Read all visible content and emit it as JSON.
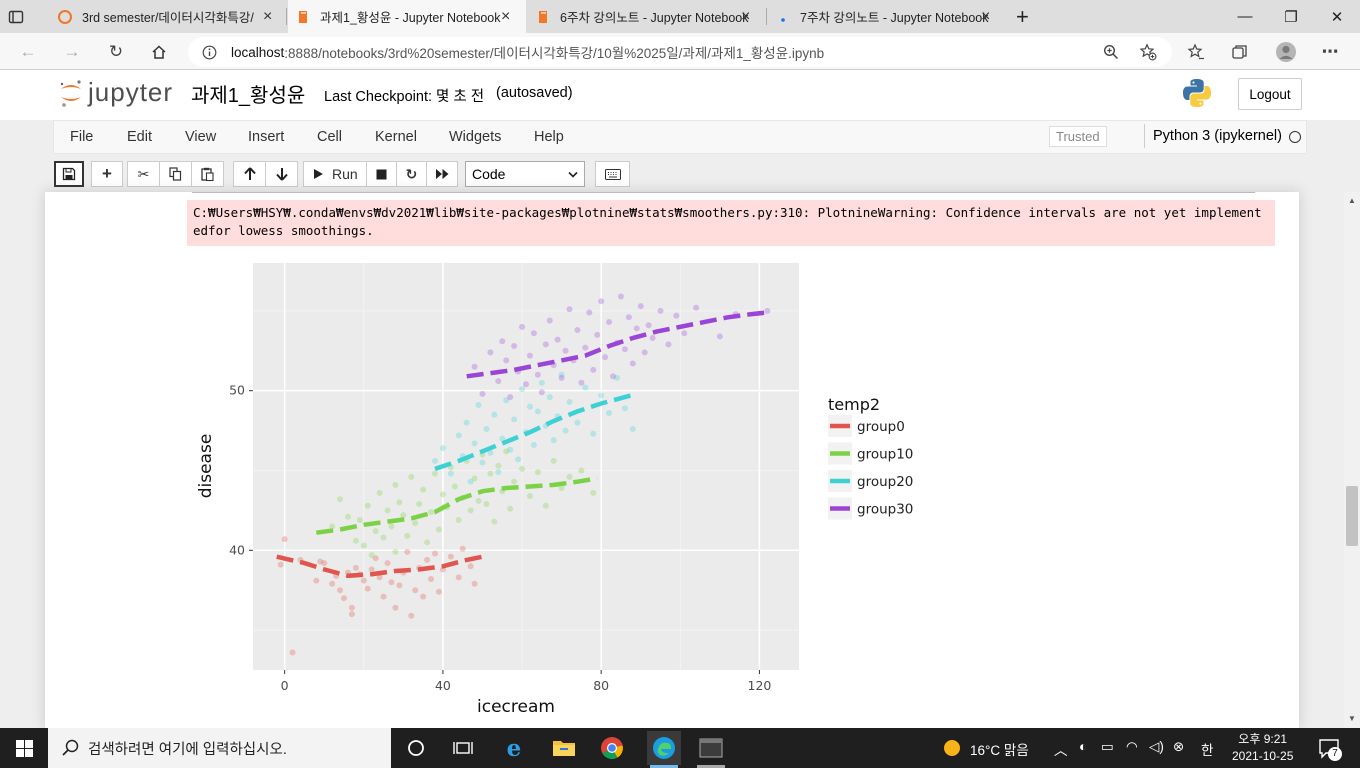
{
  "browser": {
    "tabs": [
      {
        "title": "3rd semester/데이터시각화특강/",
        "icon": "jupyter-orange-icon"
      },
      {
        "title": "과제1_황성윤 - Jupyter Notebook",
        "icon": "notebook-icon"
      },
      {
        "title": "6주차 강의노트 - Jupyter Notebook",
        "icon": "notebook-icon"
      },
      {
        "title": "7주차 강의노트 - Jupyter Notebook",
        "icon": "loading-icon"
      }
    ],
    "new_tab": "+",
    "close_glyph": "×",
    "window_controls": {
      "minimize": "—",
      "restore": "❐",
      "close": "✕"
    },
    "url_host": "localhost",
    "url_rest": ":8888/notebooks/3rd%20semester/데이터시각화특강/10월%2025일/과제/과제1_황성윤.ipynb"
  },
  "jupyter": {
    "logo_text": "jupyter",
    "notebook_title": "과제1_황성윤",
    "checkpoint": "Last Checkpoint: 몇 초 전",
    "autosaved": "(autosaved)",
    "logout": "Logout",
    "menu": [
      "File",
      "Edit",
      "View",
      "Insert",
      "Cell",
      "Kernel",
      "Widgets",
      "Help"
    ],
    "trusted": "Trusted",
    "kernel": "Python 3 (ipykernel)",
    "toolbar": {
      "run_label": "Run",
      "cell_type": "Code"
    }
  },
  "output": {
    "stderr": "C:₩Users₩HSY₩.conda₩envs₩dv2021₩lib₩site-packages₩plotnine₩stats₩smoothers.py:310: PlotnineWarning: Confidence intervals are not yet implementedfor lowess smoothings."
  },
  "chart_data": {
    "type": "scatter",
    "title": "",
    "xlabel": "icecream",
    "ylabel": "disease",
    "xlim": [
      -8,
      130
    ],
    "ylim": [
      32.5,
      58
    ],
    "x_ticks": [
      0,
      40,
      80,
      120
    ],
    "y_ticks": [
      40,
      50
    ],
    "x_tick_labels": [
      "0",
      "40",
      "80",
      "120"
    ],
    "y_tick_labels": [
      "40",
      "50"
    ],
    "grid": true,
    "legend_title": "temp2",
    "legend_position": "right",
    "series": [
      {
        "name": "group0",
        "color": "#E0554D",
        "smooth": [
          [
            -2,
            39.6
          ],
          [
            5,
            39.2
          ],
          [
            10,
            38.8
          ],
          [
            16,
            38.4
          ],
          [
            22,
            38.5
          ],
          [
            28,
            38.7
          ],
          [
            34,
            38.8
          ],
          [
            40,
            39.0
          ],
          [
            46,
            39.4
          ],
          [
            50,
            39.6
          ]
        ],
        "points": [
          [
            -1,
            39.1
          ],
          [
            0,
            40.7
          ],
          [
            2,
            33.6
          ],
          [
            4,
            39.4
          ],
          [
            8,
            38.1
          ],
          [
            9,
            39.3
          ],
          [
            10,
            39.2
          ],
          [
            12,
            37.9
          ],
          [
            13,
            38.4
          ],
          [
            14,
            37.5
          ],
          [
            15,
            37.0
          ],
          [
            16,
            38.6
          ],
          [
            17,
            36.4
          ],
          [
            17,
            36.0
          ],
          [
            18,
            38.9
          ],
          [
            19,
            38.5
          ],
          [
            20,
            38.1
          ],
          [
            21,
            37.6
          ],
          [
            22,
            38.8
          ],
          [
            23,
            39.5
          ],
          [
            24,
            38.3
          ],
          [
            25,
            37.1
          ],
          [
            26,
            39.2
          ],
          [
            27,
            38.0
          ],
          [
            28,
            36.4
          ],
          [
            29,
            37.8
          ],
          [
            30,
            38.6
          ],
          [
            31,
            39.9
          ],
          [
            32,
            35.9
          ],
          [
            33,
            37.5
          ],
          [
            34,
            38.9
          ],
          [
            35,
            37.1
          ],
          [
            36,
            39.4
          ],
          [
            37,
            38.2
          ],
          [
            38,
            39.8
          ],
          [
            39,
            37.4
          ],
          [
            40,
            38.8
          ],
          [
            42,
            39.6
          ],
          [
            44,
            38.3
          ],
          [
            45,
            40.1
          ],
          [
            47,
            39.0
          ],
          [
            48,
            37.9
          ]
        ]
      },
      {
        "name": "group10",
        "color": "#7CD247",
        "smooth": [
          [
            8,
            41.1
          ],
          [
            14,
            41.3
          ],
          [
            20,
            41.6
          ],
          [
            26,
            41.8
          ],
          [
            32,
            42.0
          ],
          [
            38,
            42.4
          ],
          [
            44,
            43.2
          ],
          [
            50,
            43.7
          ],
          [
            56,
            43.9
          ],
          [
            62,
            44.0
          ],
          [
            68,
            44.1
          ],
          [
            74,
            44.3
          ],
          [
            79,
            44.5
          ]
        ],
        "points": [
          [
            12,
            41.5
          ],
          [
            14,
            43.2
          ],
          [
            16,
            42.1
          ],
          [
            18,
            40.6
          ],
          [
            19,
            41.9
          ],
          [
            20,
            40.3
          ],
          [
            21,
            42.8
          ],
          [
            22,
            39.7
          ],
          [
            23,
            41.2
          ],
          [
            24,
            43.6
          ],
          [
            25,
            40.8
          ],
          [
            26,
            42.5
          ],
          [
            27,
            41.5
          ],
          [
            28,
            39.9
          ],
          [
            28,
            44.1
          ],
          [
            29,
            43.0
          ],
          [
            30,
            42.2
          ],
          [
            31,
            40.9
          ],
          [
            32,
            44.6
          ],
          [
            33,
            41.7
          ],
          [
            34,
            42.9
          ],
          [
            35,
            43.8
          ],
          [
            36,
            40.5
          ],
          [
            37,
            42.4
          ],
          [
            38,
            44.8
          ],
          [
            39,
            41.3
          ],
          [
            40,
            43.5
          ],
          [
            41,
            42.7
          ],
          [
            42,
            45.2
          ],
          [
            43,
            44.0
          ],
          [
            44,
            41.9
          ],
          [
            45,
            43.3
          ],
          [
            46,
            45.6
          ],
          [
            47,
            42.5
          ],
          [
            48,
            44.5
          ],
          [
            49,
            43.1
          ],
          [
            50,
            46.0
          ],
          [
            51,
            42.9
          ],
          [
            52,
            44.8
          ],
          [
            53,
            41.8
          ],
          [
            54,
            45.3
          ],
          [
            55,
            43.7
          ],
          [
            56,
            46.2
          ],
          [
            57,
            42.6
          ],
          [
            58,
            44.3
          ],
          [
            60,
            45.1
          ],
          [
            62,
            43.4
          ],
          [
            64,
            44.9
          ],
          [
            66,
            42.8
          ],
          [
            68,
            45.6
          ],
          [
            70,
            43.9
          ],
          [
            72,
            44.6
          ],
          [
            75,
            45.0
          ],
          [
            78,
            43.6
          ]
        ]
      },
      {
        "name": "group20",
        "color": "#3DD0D5",
        "smooth": [
          [
            38,
            45.1
          ],
          [
            44,
            45.6
          ],
          [
            50,
            46.2
          ],
          [
            56,
            46.8
          ],
          [
            62,
            47.4
          ],
          [
            68,
            48.1
          ],
          [
            74,
            48.7
          ],
          [
            80,
            49.2
          ],
          [
            86,
            49.6
          ],
          [
            89,
            49.8
          ]
        ],
        "points": [
          [
            38,
            45.6
          ],
          [
            40,
            46.4
          ],
          [
            42,
            44.8
          ],
          [
            44,
            47.2
          ],
          [
            45,
            45.9
          ],
          [
            46,
            48.0
          ],
          [
            47,
            44.3
          ],
          [
            48,
            46.7
          ],
          [
            49,
            49.1
          ],
          [
            50,
            45.5
          ],
          [
            51,
            47.6
          ],
          [
            52,
            46.1
          ],
          [
            53,
            48.5
          ],
          [
            54,
            44.9
          ],
          [
            55,
            47.0
          ],
          [
            56,
            49.4
          ],
          [
            57,
            46.3
          ],
          [
            58,
            48.2
          ],
          [
            59,
            45.7
          ],
          [
            60,
            50.1
          ],
          [
            61,
            47.4
          ],
          [
            62,
            49.0
          ],
          [
            63,
            46.6
          ],
          [
            64,
            48.7
          ],
          [
            65,
            50.5
          ],
          [
            66,
            47.8
          ],
          [
            67,
            49.6
          ],
          [
            68,
            46.9
          ],
          [
            69,
            48.4
          ],
          [
            70,
            51.0
          ],
          [
            71,
            47.5
          ],
          [
            72,
            49.3
          ],
          [
            74,
            48.0
          ],
          [
            76,
            50.2
          ],
          [
            78,
            47.3
          ],
          [
            80,
            49.7
          ],
          [
            82,
            48.6
          ],
          [
            84,
            50.8
          ],
          [
            86,
            48.9
          ],
          [
            88,
            47.6
          ]
        ]
      },
      {
        "name": "group30",
        "color": "#9B44D8",
        "smooth": [
          [
            46,
            50.9
          ],
          [
            52,
            51.1
          ],
          [
            58,
            51.3
          ],
          [
            64,
            51.6
          ],
          [
            70,
            51.9
          ],
          [
            76,
            52.2
          ],
          [
            82,
            52.8
          ],
          [
            88,
            53.3
          ],
          [
            94,
            53.7
          ],
          [
            100,
            54.0
          ],
          [
            106,
            54.3
          ],
          [
            112,
            54.6
          ],
          [
            118,
            54.8
          ],
          [
            122,
            54.9
          ]
        ],
        "points": [
          [
            48,
            51.5
          ],
          [
            50,
            49.8
          ],
          [
            52,
            52.4
          ],
          [
            54,
            50.6
          ],
          [
            55,
            53.1
          ],
          [
            56,
            51.9
          ],
          [
            57,
            49.6
          ],
          [
            58,
            52.8
          ],
          [
            59,
            51.2
          ],
          [
            60,
            54.0
          ],
          [
            61,
            50.4
          ],
          [
            62,
            52.2
          ],
          [
            63,
            53.6
          ],
          [
            64,
            51.0
          ],
          [
            65,
            49.9
          ],
          [
            66,
            52.9
          ],
          [
            67,
            54.4
          ],
          [
            68,
            51.6
          ],
          [
            69,
            53.2
          ],
          [
            70,
            50.8
          ],
          [
            71,
            52.5
          ],
          [
            72,
            55.1
          ],
          [
            73,
            51.9
          ],
          [
            74,
            53.8
          ],
          [
            75,
            50.5
          ],
          [
            76,
            52.7
          ],
          [
            77,
            54.9
          ],
          [
            78,
            51.3
          ],
          [
            79,
            53.5
          ],
          [
            80,
            55.6
          ],
          [
            81,
            52.1
          ],
          [
            82,
            54.3
          ],
          [
            83,
            50.9
          ],
          [
            84,
            53.0
          ],
          [
            85,
            55.9
          ],
          [
            86,
            52.6
          ],
          [
            87,
            54.6
          ],
          [
            88,
            51.7
          ],
          [
            89,
            53.9
          ],
          [
            90,
            55.3
          ],
          [
            91,
            52.4
          ],
          [
            92,
            54.1
          ],
          [
            93,
            53.3
          ],
          [
            95,
            55.0
          ],
          [
            97,
            52.9
          ],
          [
            99,
            54.7
          ],
          [
            101,
            53.6
          ],
          [
            104,
            55.2
          ],
          [
            110,
            53.4
          ],
          [
            114,
            54.8
          ],
          [
            122,
            55.0
          ]
        ]
      }
    ]
  },
  "taskbar": {
    "search_placeholder": "검색하려면 여기에 입력하십시오.",
    "weather": "16°C  맑음",
    "ime": "한",
    "time": "오후 9:21",
    "date": "2021-10-25",
    "notifications": "7"
  }
}
